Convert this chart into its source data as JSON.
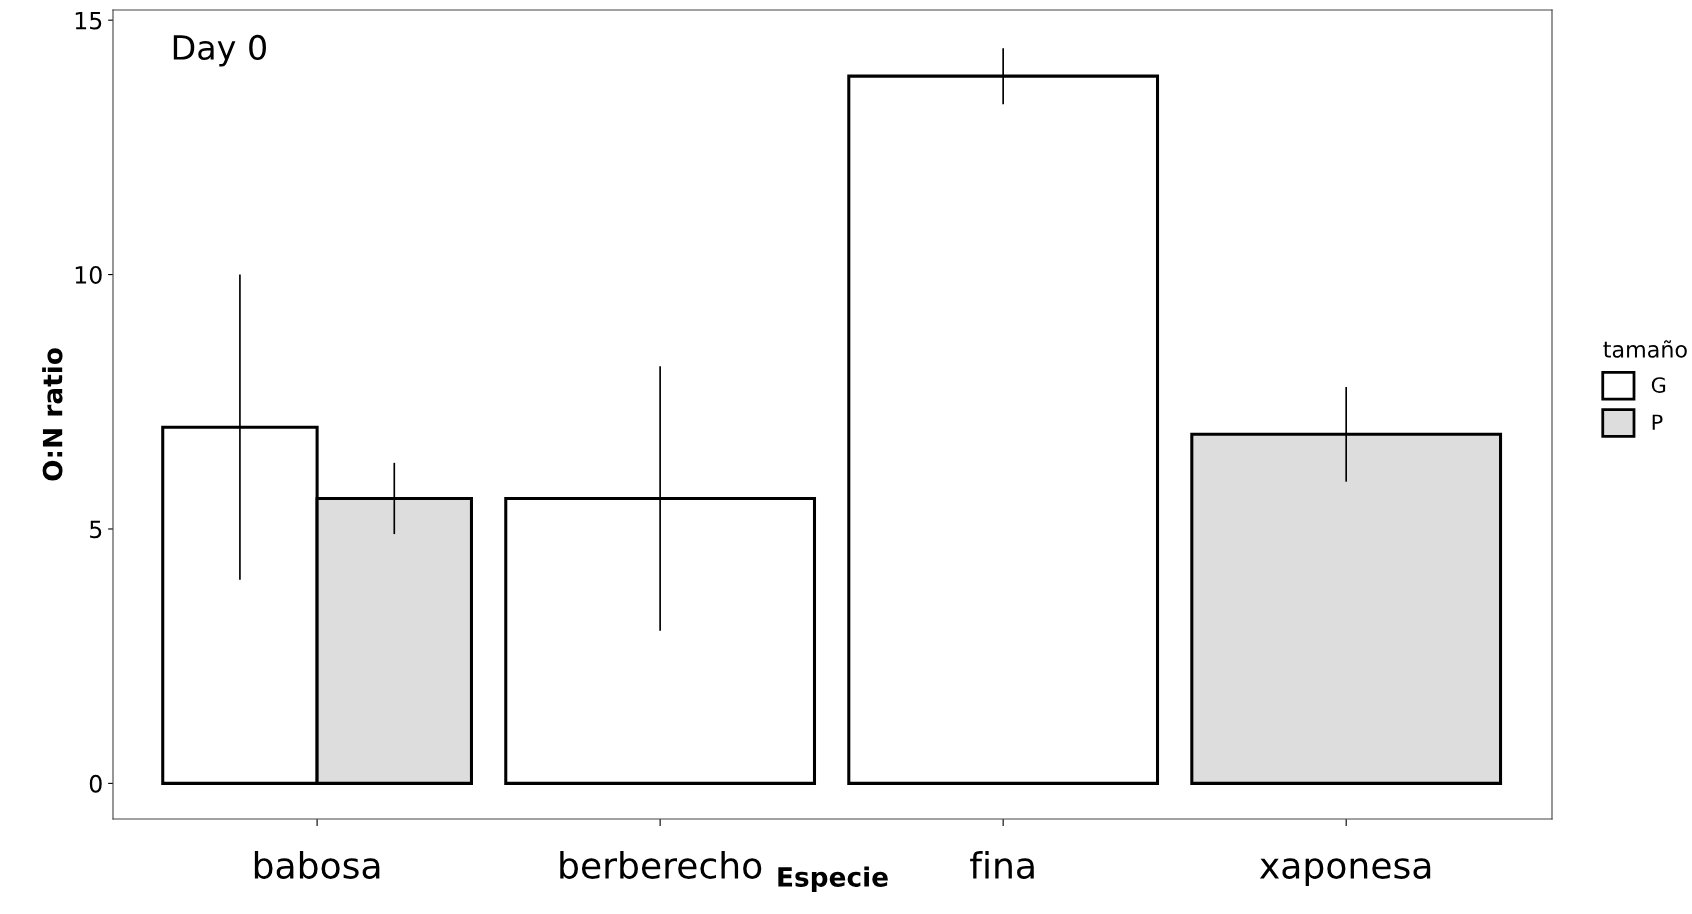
{
  "chart_data": {
    "type": "bar",
    "categories": [
      "babosa",
      "berberecho",
      "fina",
      "xaponesa"
    ],
    "series": [
      {
        "name": "G",
        "color": "#ffffff",
        "values": [
          7.0,
          5.6,
          13.9,
          null
        ],
        "errors": [
          3.0,
          2.6,
          0.55,
          null
        ]
      },
      {
        "name": "P",
        "color": "#dddddd",
        "values": [
          5.6,
          null,
          null,
          6.86
        ],
        "errors": [
          0.7,
          null,
          null,
          0.93
        ]
      }
    ],
    "xlabel": "Especie",
    "ylabel": "O:N ratio",
    "legend_title": "tamaño",
    "legend": "right",
    "ylim": [
      -0.7,
      15.2
    ],
    "yticks": [
      0,
      5,
      10,
      15
    ],
    "grid": false,
    "annotations": [
      "Day 0"
    ]
  }
}
